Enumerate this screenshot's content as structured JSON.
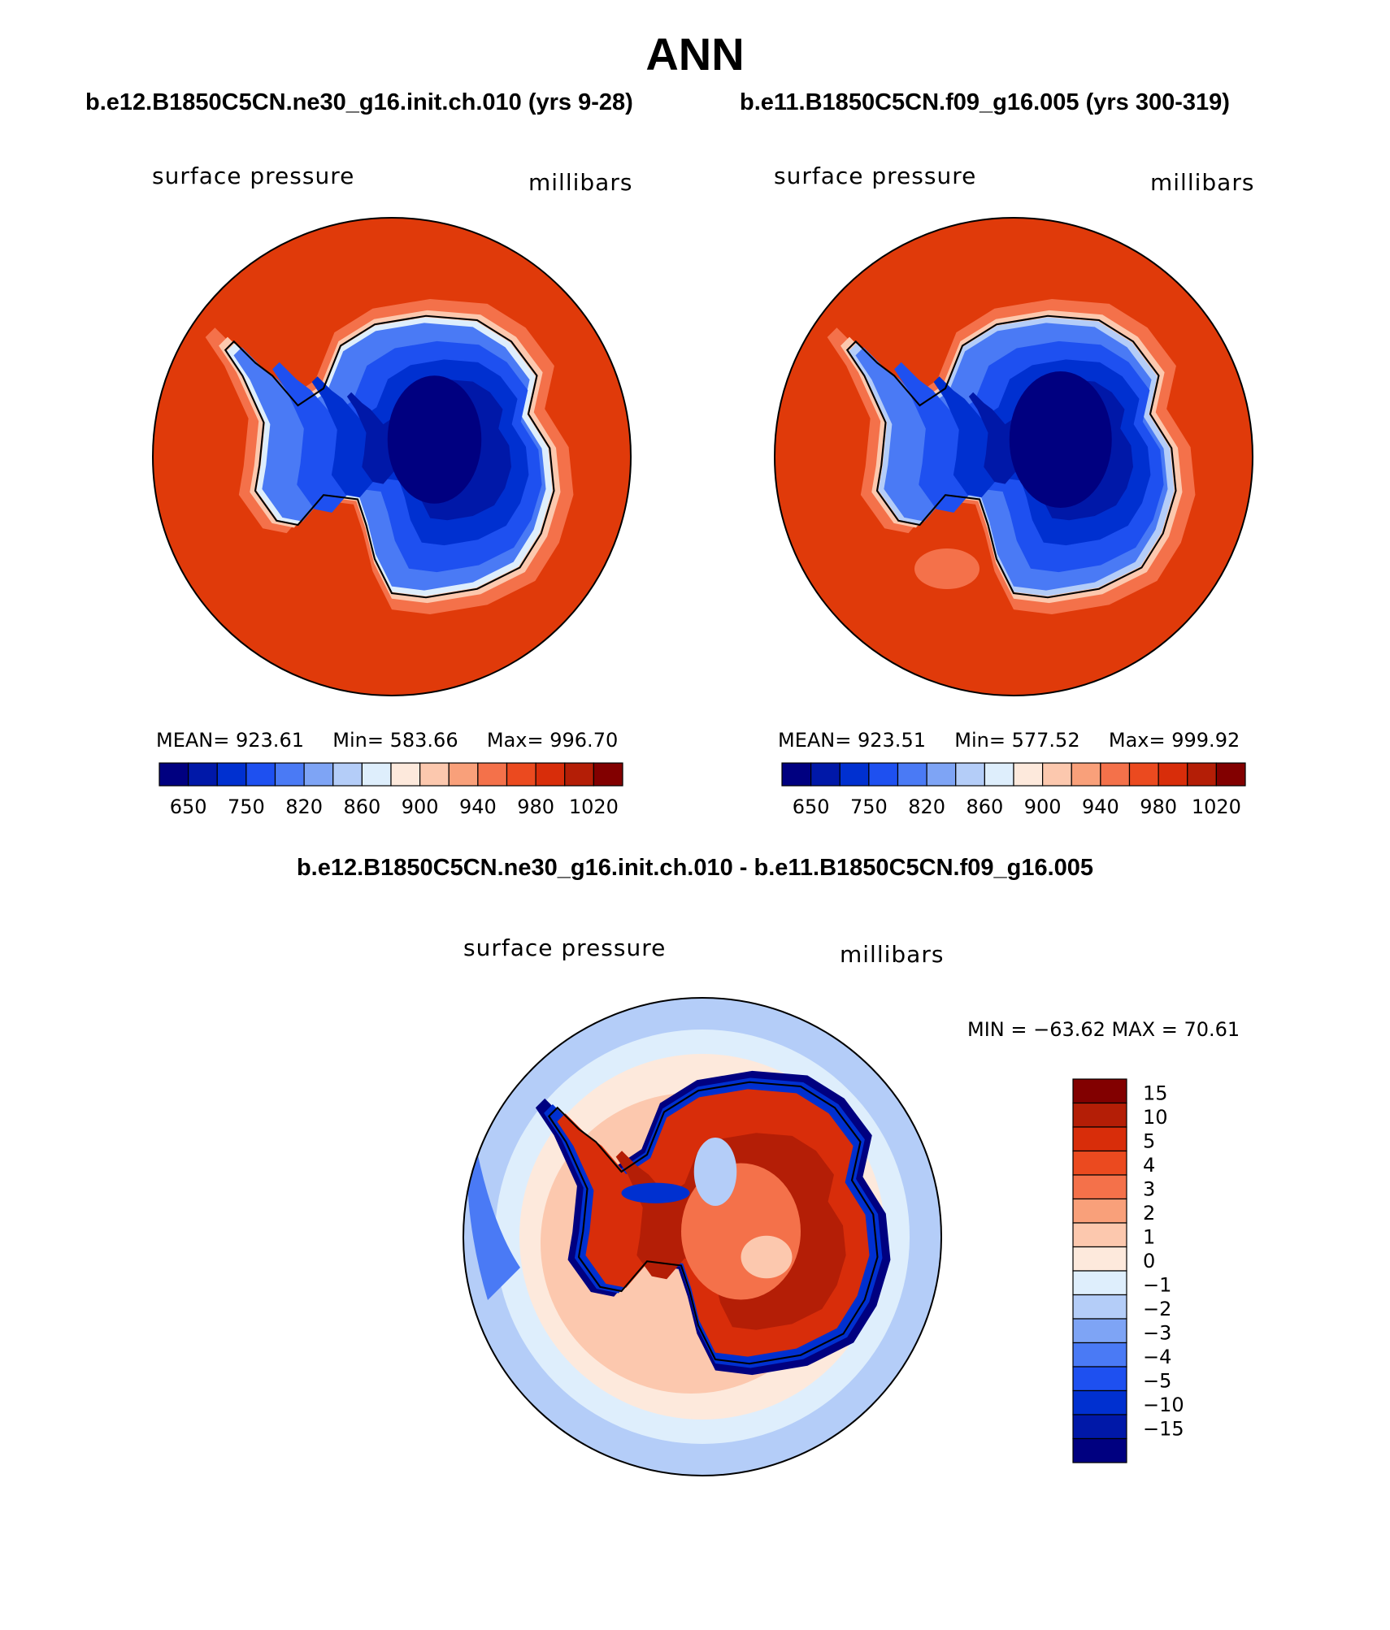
{
  "title": "ANN",
  "case1": {
    "title": "b.e12.B1850C5CN.ne30_g16.init.ch.010 (yrs 9-28)"
  },
  "case2": {
    "title": "b.e11.B1850C5CN.f09_g16.005 (yrs 300-319)"
  },
  "diff": {
    "title": "b.e12.B1850C5CN.ne30_g16.init.ch.010 - b.e11.B1850C5CN.f09_g16.005"
  },
  "panels": [
    {
      "variable": "surface pressure",
      "units": "millibars",
      "mean_label": "MEAN=",
      "mean": "923.61",
      "min_label": "Min=",
      "min": "583.66",
      "max_label": "Max=",
      "max": "996.70"
    },
    {
      "variable": "surface pressure",
      "units": "millibars",
      "mean_label": "MEAN=",
      "mean": "923.51",
      "min_label": "Min=",
      "min": "577.52",
      "max_label": "Max=",
      "max": "999.92"
    },
    {
      "variable": "surface pressure",
      "units": "millibars",
      "minmax_text": "MIN = −63.62  MAX =   70.61"
    }
  ],
  "colorbar_abs": {
    "tick_labels": [
      "650",
      "750",
      "820",
      "860",
      "900",
      "940",
      "980",
      "1020"
    ],
    "colors": [
      "#000080",
      "#0018a8",
      "#0030d0",
      "#1e50f0",
      "#4a7af5",
      "#7ea4f5",
      "#b4cdf8",
      "#deeefc",
      "#fde9dc",
      "#fcc8ae",
      "#f9a07a",
      "#f4714a",
      "#eb4a1f",
      "#d82d0a",
      "#b41e06",
      "#820000"
    ]
  },
  "colorbar_diff": {
    "tick_labels": [
      "15",
      "10",
      "5",
      "4",
      "3",
      "2",
      "1",
      "0",
      "−1",
      "−2",
      "−3",
      "−4",
      "−5",
      "−10",
      "−15"
    ],
    "colors": [
      "#820000",
      "#b41e06",
      "#d82d0a",
      "#eb4a1f",
      "#f4714a",
      "#f9a07a",
      "#fcc8ae",
      "#fde9dc",
      "#deeefc",
      "#b4cdf8",
      "#7ea4f5",
      "#4a7af5",
      "#1e50f0",
      "#0030d0",
      "#0018a8",
      "#000080"
    ]
  },
  "map_colors": {
    "ocean_abs": "#e03a0a",
    "coast_halo_1": "#f4714a",
    "coast_halo_2": "#fcc8ae",
    "land_1": "#4a7af5",
    "land_2": "#1e50f0",
    "land_3": "#0030d0",
    "land_4": "#0018a8",
    "land_core": "#000080",
    "diff_ring_outer": "#b4cdf8",
    "diff_ring_mid": "#deeefc",
    "diff_ring_inner": "#fde9dc",
    "diff_ring_pink": "#fcc8ae",
    "diff_coast": "#0030d0",
    "diff_land": "#d82d0a",
    "diff_land_dark": "#b41e06"
  }
}
